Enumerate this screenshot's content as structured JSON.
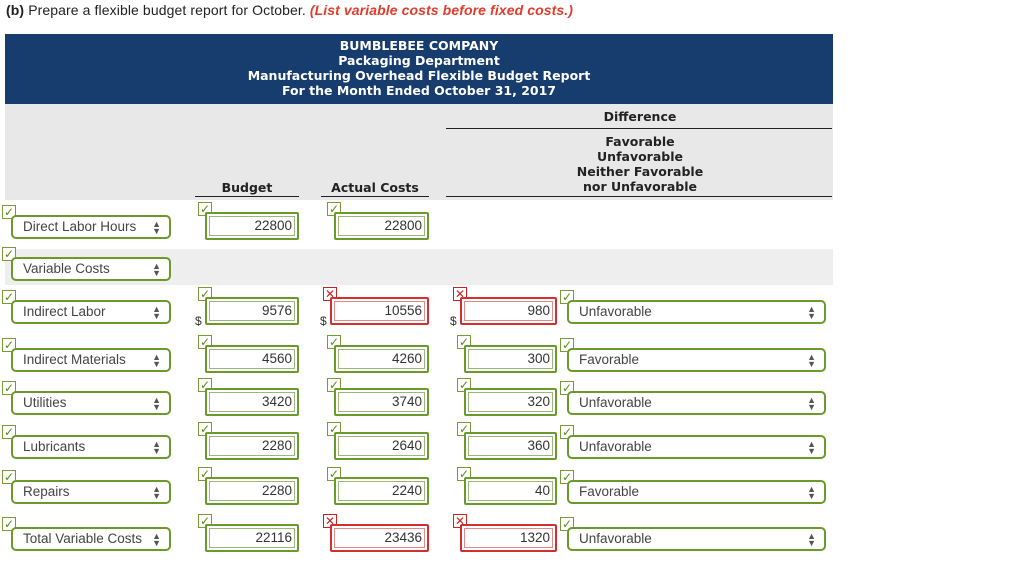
{
  "instruction": {
    "part": "(b)",
    "text": "Prepare a flexible budget report for October.",
    "emphasis": "(List variable costs before fixed costs.)"
  },
  "report": {
    "company": "BUMBLEBEE COMPANY",
    "department": "Packaging Department",
    "title": "Manufacturing Overhead Flexible Budget Report",
    "period": "For the Month Ended October 31, 2017"
  },
  "headers": {
    "budget": "Budget",
    "actual": "Actual Costs",
    "difference": "Difference",
    "diff_options": [
      "Favorable",
      "Unfavorable",
      "Neither Favorable",
      "nor Unfavorable"
    ]
  },
  "currency": "$",
  "rows": {
    "dlh": {
      "label": "Direct Labor Hours",
      "budget": "22800",
      "actual": "22800"
    },
    "variable": {
      "label": "Variable Costs"
    },
    "indirect_labor": {
      "label": "Indirect Labor",
      "budget": "9576",
      "actual": "10556",
      "difference": "980",
      "status": "Unfavorable"
    },
    "indirect_materials": {
      "label": "Indirect Materials",
      "budget": "4560",
      "actual": "4260",
      "difference": "300",
      "status": "Favorable"
    },
    "utilities": {
      "label": "Utilities",
      "budget": "3420",
      "actual": "3740",
      "difference": "320",
      "status": "Unfavorable"
    },
    "lubricants": {
      "label": "Lubricants",
      "budget": "2280",
      "actual": "2640",
      "difference": "360",
      "status": "Unfavorable"
    },
    "repairs": {
      "label": "Repairs",
      "budget": "2280",
      "actual": "2240",
      "difference": "40",
      "status": "Favorable"
    },
    "total": {
      "label": "Total Variable Costs",
      "budget": "22116",
      "actual": "23436",
      "difference": "1320",
      "status": "Unfavorable"
    }
  },
  "icons": {
    "correct": "checkmark-icon",
    "incorrect": "x-mark-icon"
  },
  "colors": {
    "header_bg": "#173c6e",
    "correct": "#6a9a2a",
    "incorrect": "#d23030",
    "emphasis": "#e23b2c"
  }
}
